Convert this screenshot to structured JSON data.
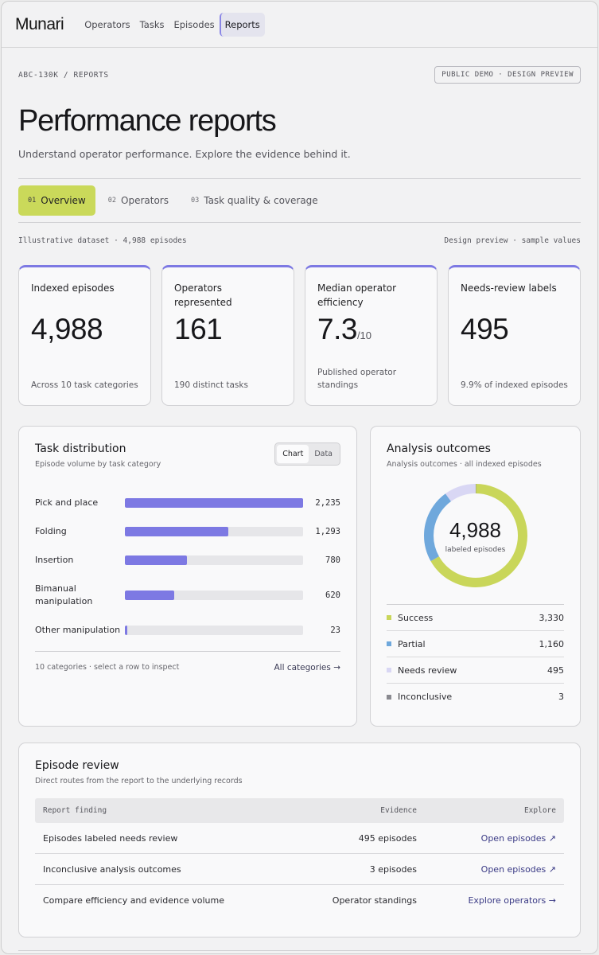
{
  "app": {
    "logo": "Munari"
  },
  "nav": [
    {
      "label": "Operators",
      "active": false
    },
    {
      "label": "Tasks",
      "active": false
    },
    {
      "label": "Episodes",
      "active": false
    },
    {
      "label": "Reports",
      "active": true
    }
  ],
  "breadcrumb": "ABC-130K / REPORTS",
  "badge": "PUBLIC DEMO · DESIGN PREVIEW",
  "page": {
    "title": "Performance reports",
    "subtitle": "Understand operator performance. Explore the evidence behind it."
  },
  "tabs": [
    {
      "num": "01",
      "label": "Overview",
      "active": true
    },
    {
      "num": "02",
      "label": "Operators",
      "active": false
    },
    {
      "num": "03",
      "label": "Task quality & coverage",
      "active": false
    }
  ],
  "meta": {
    "left": "Illustrative dataset · 4,988 episodes",
    "right": "Design preview · sample values"
  },
  "cards": [
    {
      "label": "Indexed episodes",
      "value": "4,988",
      "suffix": "",
      "note": "Across 10 task categories"
    },
    {
      "label": "Operators represented",
      "value": "161",
      "suffix": "",
      "note": "190 distinct tasks"
    },
    {
      "label": "Median operator efficiency",
      "value": "7.3",
      "suffix": "/10",
      "note": "Published operator standings"
    },
    {
      "label": "Needs-review labels",
      "value": "495",
      "suffix": "",
      "note": "9.9% of indexed episodes"
    }
  ],
  "task_distribution": {
    "title": "Task distribution",
    "subtitle": "Episode volume by task category",
    "toggle": {
      "chart": "Chart",
      "data": "Data",
      "selected": "Chart"
    },
    "footer_note": "10 categories · select a row to inspect",
    "footer_link": "All categories →"
  },
  "chart_data": {
    "type": "bar",
    "orientation": "horizontal",
    "categories": [
      "Pick and place",
      "Folding",
      "Insertion",
      "Bimanual manipulation",
      "Other manipulation"
    ],
    "values": [
      2235,
      1293,
      780,
      620,
      23
    ],
    "value_labels": [
      "2,235",
      "1,293",
      "780",
      "620",
      "23"
    ],
    "xlim": [
      0,
      2235
    ],
    "color": "#7d79e3"
  },
  "outcomes": {
    "title": "Analysis outcomes",
    "subtitle": "Analysis outcomes · all indexed episodes",
    "total": "4,988",
    "total_label": "labeled episodes",
    "items": [
      {
        "name": "Success",
        "value": 3330,
        "display": "3,330",
        "color": "#c9d65a"
      },
      {
        "name": "Partial",
        "value": 1160,
        "display": "1,160",
        "color": "#6fa8dc"
      },
      {
        "name": "Needs review",
        "value": 495,
        "display": "495",
        "color": "#d9d7f4"
      },
      {
        "name": "Inconclusive",
        "value": 3,
        "display": "3",
        "color": "#8a8a90"
      }
    ]
  },
  "review": {
    "title": "Episode review",
    "subtitle": "Direct routes from the report to the underlying records",
    "headers": [
      "Report finding",
      "Evidence",
      "Explore"
    ],
    "rows": [
      {
        "finding": "Episodes labeled needs review",
        "evidence": "495 episodes",
        "action": "Open episodes ↗"
      },
      {
        "finding": "Inconclusive analysis outcomes",
        "evidence": "3 episodes",
        "action": "Open episodes ↗"
      },
      {
        "finding": "Compare efficiency and evidence volume",
        "evidence": "Operator standings",
        "action": "Explore operators →"
      }
    ]
  }
}
